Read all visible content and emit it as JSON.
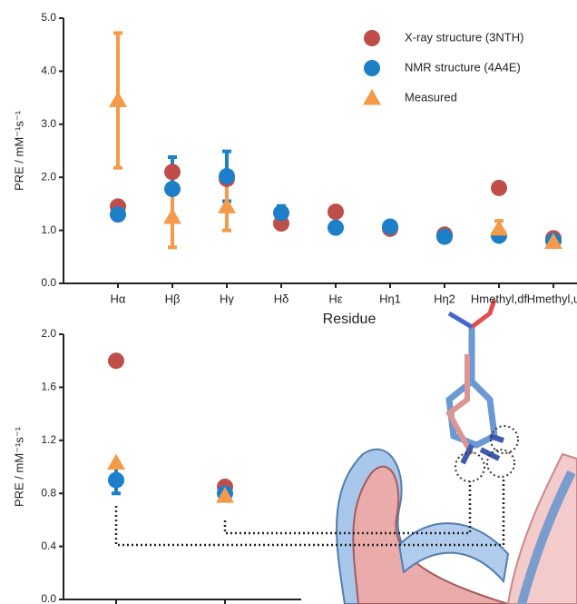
{
  "chart_data": [
    {
      "type": "dot",
      "y_label": "PRE / mM⁻¹s⁻¹",
      "x_label": "Residue",
      "categories": [
        "Hα",
        "Hβ",
        "Hγ",
        "Hδ",
        "Hε",
        "Hη1",
        "Hη2",
        "Hmethyl,df",
        "Hmethyl,u"
      ],
      "ylim": [
        0,
        5
      ],
      "yticks": [
        {
          "value": 0,
          "label": "0.0"
        },
        {
          "value": 1,
          "label": "1.0"
        },
        {
          "value": 2,
          "label": "2.0"
        },
        {
          "value": 3,
          "label": "3.0"
        },
        {
          "value": 4,
          "label": "4.0"
        },
        {
          "value": 5,
          "label": "5.0"
        }
      ],
      "legend": "upper right",
      "series": [
        {
          "name": "X-ray structure (3NTH)",
          "color": "#bf4e4a",
          "marker": "circle",
          "values": [
            1.45,
            2.1,
            1.97,
            1.13,
            1.35,
            1.03,
            0.92,
            1.8,
            0.85
          ],
          "errors": [
            null,
            null,
            null,
            null,
            null,
            null,
            null,
            null,
            null
          ]
        },
        {
          "name": "NMR structure (4A4E)",
          "color": "#1c7fc7",
          "marker": "circle",
          "values": [
            1.3,
            1.78,
            2.02,
            1.33,
            1.05,
            1.07,
            0.88,
            0.9,
            0.8
          ],
          "errors": [
            0.1,
            0.6,
            0.47,
            0.13,
            null,
            null,
            null,
            null,
            null
          ]
        },
        {
          "name": "Measured",
          "color": "#f59a48",
          "marker": "triangle",
          "values": [
            3.45,
            1.25,
            1.45,
            null,
            null,
            null,
            null,
            1.03,
            0.78
          ],
          "errors": [
            1.27,
            0.57,
            0.45,
            null,
            null,
            null,
            null,
            0.15,
            0.05
          ]
        }
      ]
    },
    {
      "type": "dot",
      "y_label": "PRE / mM⁻¹s⁻¹",
      "categories": [
        null,
        null
      ],
      "ylim": [
        0,
        2
      ],
      "yticks": [
        {
          "value": 0,
          "label": "0.0"
        },
        {
          "value": 0.4,
          "label": "0.4"
        },
        {
          "value": 0.8,
          "label": "0.8"
        },
        {
          "value": 1.2,
          "label": "1.2"
        },
        {
          "value": 1.6,
          "label": "1.6"
        },
        {
          "value": 2,
          "label": "2.0"
        }
      ],
      "series": [
        {
          "name": "X-ray structure (3NTH)",
          "color": "#bf4e4a",
          "marker": "circle",
          "values": [
            1.8,
            0.85
          ],
          "errors": [
            null,
            null
          ]
        },
        {
          "name": "NMR structure (4A4E)",
          "color": "#1c7fc7",
          "marker": "circle",
          "values": [
            0.9,
            0.8
          ],
          "errors": [
            0.1,
            null
          ]
        },
        {
          "name": "Measured",
          "color": "#f59a48",
          "marker": "triangle",
          "values": [
            1.03,
            0.78
          ],
          "errors": [
            null,
            null
          ]
        }
      ]
    }
  ]
}
